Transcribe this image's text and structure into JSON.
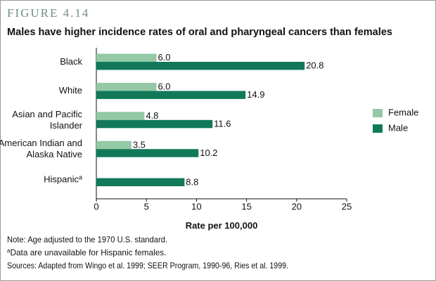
{
  "figure_label": "FIGURE 4.14",
  "chart_data": {
    "type": "hbar",
    "title": "Males have higher incidence rates of oral and pharyngeal cancers than females",
    "categories": [
      "Black",
      "White",
      "Asian and Pacific Islander",
      "American Indian and Alaska Native",
      "Hispanic"
    ],
    "label_footnote_mark": "a",
    "series": [
      {
        "name": "Female",
        "color": "#93c9a5",
        "values": [
          6.0,
          6.0,
          4.8,
          3.5,
          null
        ],
        "value_labels": [
          "6.0",
          "6.0",
          "4.8",
          "3.5",
          null
        ]
      },
      {
        "name": "Male",
        "color": "#11795a",
        "values": [
          20.8,
          14.9,
          11.6,
          10.2,
          8.8
        ]
      }
    ],
    "xlabel": "Rate per 100,000",
    "xlim": [
      0,
      25
    ],
    "xticks": [
      0,
      5,
      10,
      15,
      20,
      25
    ],
    "grid": false,
    "legend": "right"
  },
  "notes": [
    {
      "text": "Note:  Age adjusted to the 1970 U.S. standard."
    },
    {
      "mark": "a",
      "text": "Data are unavailable for Hispanic females."
    },
    {
      "text": "Sources:  Adapted from Wingo et al. 1999; SEER Program, 1990-96, Ries et al. 1999."
    }
  ]
}
